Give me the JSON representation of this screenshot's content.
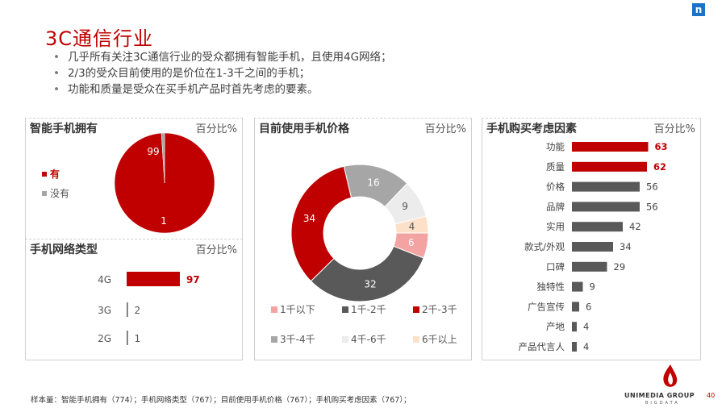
{
  "title": "3C通信行业",
  "bullets": [
    "几乎所有关注3C通信行业的受众都拥有智能手机，且使用4G网络；",
    "2/3的受众目前使用的是价位在1-3千之间的手机；",
    "功能和质量是受众在买手机产品时首先考虑的要素。"
  ],
  "logo_letter": "n",
  "unit_label": "百分比%",
  "footer_text": "样本量：智能手机拥有（774）；手机网络类型（767）；目前使用手机价格（767）；手机购买考虑因素（767）；",
  "brand": {
    "name": "UNIMEDIA GROUP",
    "sub": "BIGDATA",
    "page": "40"
  },
  "colors": {
    "red": "#c00000",
    "gray": "#595959",
    "lightgray": "#a6a6a6"
  },
  "chart_data": [
    {
      "type": "pie",
      "title": "智能手机拥有",
      "categories": [
        "有",
        "没有"
      ],
      "values": [
        99,
        1
      ],
      "colors": [
        "#c00000",
        "#a6a6a6"
      ],
      "legend": "left"
    },
    {
      "type": "bar",
      "orientation": "horizontal",
      "title": "手机网络类型",
      "categories": [
        "4G",
        "3G",
        "2G"
      ],
      "values": [
        97,
        2,
        1
      ],
      "colors": [
        "#c00000",
        "#595959",
        "#595959"
      ]
    },
    {
      "type": "pie",
      "subtype": "donut",
      "title": "目前使用手机价格",
      "categories": [
        "1千以下",
        "1千-2千",
        "2千-3千",
        "3千-4千",
        "4千-6千",
        "6千以上"
      ],
      "legend_labels": [
        "1千以下",
        "1千-2千",
        "2千-3千",
        "3千-4千",
        "4千-6千",
        "6千以上"
      ],
      "values": [
        6,
        32,
        34,
        16,
        9,
        4
      ],
      "colors": [
        "#f4a3a3",
        "#595959",
        "#c00000",
        "#a6a6a6",
        "#ececec",
        "#fde0c8"
      ],
      "legend": "bottom"
    },
    {
      "type": "bar",
      "orientation": "horizontal",
      "title": "手机购买考虑因素",
      "categories": [
        "功能",
        "质量",
        "价格",
        "品牌",
        "实用",
        "款式/外观",
        "口碑",
        "独特性",
        "广告宣传",
        "产地",
        "产品代言人"
      ],
      "values": [
        63,
        62,
        56,
        56,
        42,
        34,
        29,
        9,
        6,
        4,
        4
      ],
      "colors": [
        "#c00000",
        "#c00000",
        "#595959",
        "#595959",
        "#595959",
        "#595959",
        "#595959",
        "#595959",
        "#595959",
        "#595959",
        "#595959"
      ]
    }
  ]
}
